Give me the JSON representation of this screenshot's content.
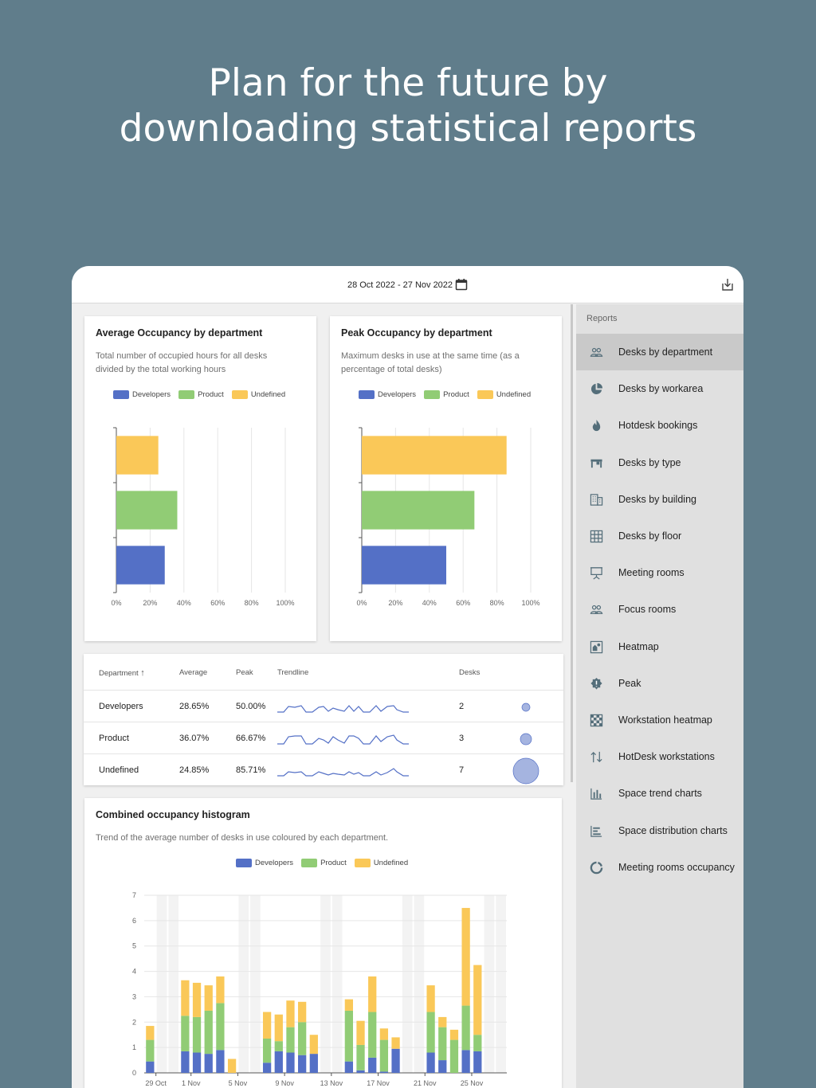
{
  "hero": {
    "line1": "Plan for the future by",
    "line2": "downloading statistical reports"
  },
  "topbar": {
    "date_range": "28 Oct 2022 - 27 Nov 2022"
  },
  "colors": {
    "developers": "#5470c6",
    "product": "#91cc75",
    "undefined": "#fac858"
  },
  "legend": [
    "Developers",
    "Product",
    "Undefined"
  ],
  "avg_card": {
    "title": "Average Occupancy by department",
    "desc_line1": "Total number of occupied hours for all desks",
    "desc_line2": "divided by the total working hours"
  },
  "peak_card": {
    "title": "Peak Occupancy by department",
    "desc_line1": "Maximum desks in use at the same time (as a",
    "desc_line2": "percentage of total desks)"
  },
  "table": {
    "headers": {
      "department": "Department",
      "average": "Average",
      "peak": "Peak",
      "trendline": "Trendline",
      "desks": "Desks"
    },
    "rows": [
      {
        "department": "Developers",
        "average": "28.65%",
        "peak": "50.00%",
        "desks": "2"
      },
      {
        "department": "Product",
        "average": "36.07%",
        "peak": "66.67%",
        "desks": "3"
      },
      {
        "department": "Undefined",
        "average": "24.85%",
        "peak": "85.71%",
        "desks": "7"
      }
    ]
  },
  "histogram_card": {
    "title": "Combined occupancy histogram",
    "desc": "Trend of the average number of desks in use coloured by each department."
  },
  "sidebar": {
    "heading": "Reports",
    "items": [
      {
        "label": "Desks by department",
        "icon": "people-icon"
      },
      {
        "label": "Desks by workarea",
        "icon": "pie-chart-icon"
      },
      {
        "label": "Hotdesk bookings",
        "icon": "flame-icon"
      },
      {
        "label": "Desks by type",
        "icon": "desk-icon"
      },
      {
        "label": "Desks by building",
        "icon": "building-icon"
      },
      {
        "label": "Desks by floor",
        "icon": "grid-icon"
      },
      {
        "label": "Meeting rooms",
        "icon": "presentation-icon"
      },
      {
        "label": "Focus rooms",
        "icon": "people-outline-icon"
      },
      {
        "label": "Heatmap",
        "icon": "heatmap-icon"
      },
      {
        "label": "Peak",
        "icon": "alert-badge-icon"
      },
      {
        "label": "Workstation heatmap",
        "icon": "checkerboard-icon"
      },
      {
        "label": "HotDesk workstations",
        "icon": "swap-vertical-icon"
      },
      {
        "label": "Space trend charts",
        "icon": "bar-chart-icon"
      },
      {
        "label": "Space distribution charts",
        "icon": "distribution-chart-icon"
      },
      {
        "label": "Meeting rooms occupancy",
        "icon": "donut-icon"
      }
    ]
  },
  "chart_data": [
    {
      "type": "bar",
      "orientation": "horizontal",
      "categories": [
        "Undefined",
        "Product",
        "Developers"
      ],
      "values": [
        24.85,
        36.07,
        28.65
      ],
      "xlim": [
        0,
        100
      ],
      "xticks": [
        "0%",
        "20%",
        "40%",
        "60%",
        "80%",
        "100%"
      ]
    },
    {
      "type": "bar",
      "orientation": "horizontal",
      "categories": [
        "Undefined",
        "Product",
        "Developers"
      ],
      "values": [
        85.71,
        66.67,
        50.0
      ],
      "xlim": [
        0,
        100
      ],
      "xticks": [
        "0%",
        "20%",
        "40%",
        "60%",
        "80%",
        "100%"
      ]
    },
    {
      "type": "bar",
      "stacked": true,
      "ylim": [
        0,
        7
      ],
      "yticks": [
        "0",
        "1",
        "2",
        "3",
        "4",
        "5",
        "6",
        "7"
      ],
      "xtick_labels": [
        "29 Oct",
        "1 Nov",
        "5 Nov",
        "9 Nov",
        "13 Nov",
        "17 Nov",
        "21 Nov",
        "25 Nov"
      ],
      "xtick_days": [
        1,
        4,
        8,
        12,
        16,
        20,
        24,
        28
      ],
      "weekend_days": [
        1,
        2,
        8,
        9,
        15,
        16,
        22,
        23,
        29,
        30
      ],
      "days": [
        {
          "d": 0,
          "dev": 0.45,
          "prod": 0.85,
          "undef": 0.55
        },
        {
          "d": 3,
          "dev": 0.85,
          "prod": 1.4,
          "undef": 1.4
        },
        {
          "d": 4,
          "dev": 0.8,
          "prod": 1.4,
          "undef": 1.35
        },
        {
          "d": 5,
          "dev": 0.75,
          "prod": 1.7,
          "undef": 1.0
        },
        {
          "d": 6,
          "dev": 0.9,
          "prod": 1.85,
          "undef": 1.05
        },
        {
          "d": 7,
          "dev": 0.0,
          "prod": 0.0,
          "undef": 0.55
        },
        {
          "d": 10,
          "dev": 0.4,
          "prod": 0.95,
          "undef": 1.05
        },
        {
          "d": 11,
          "dev": 0.85,
          "prod": 0.4,
          "undef": 1.05
        },
        {
          "d": 12,
          "dev": 0.8,
          "prod": 1.0,
          "undef": 1.05
        },
        {
          "d": 13,
          "dev": 0.7,
          "prod": 1.3,
          "undef": 0.8
        },
        {
          "d": 14,
          "dev": 0.75,
          "prod": 0.0,
          "undef": 0.75
        },
        {
          "d": 17,
          "dev": 0.45,
          "prod": 2.0,
          "undef": 0.45
        },
        {
          "d": 18,
          "dev": 0.1,
          "prod": 1.0,
          "undef": 0.95
        },
        {
          "d": 19,
          "dev": 0.6,
          "prod": 1.8,
          "undef": 1.4
        },
        {
          "d": 20,
          "dev": 0.05,
          "prod": 1.25,
          "undef": 0.45
        },
        {
          "d": 21,
          "dev": 0.95,
          "prod": 0.0,
          "undef": 0.45
        },
        {
          "d": 24,
          "dev": 0.8,
          "prod": 1.6,
          "undef": 1.05
        },
        {
          "d": 25,
          "dev": 0.5,
          "prod": 1.3,
          "undef": 0.4
        },
        {
          "d": 26,
          "dev": 0.0,
          "prod": 1.3,
          "undef": 0.4
        },
        {
          "d": 27,
          "dev": 0.9,
          "prod": 1.75,
          "undef": 3.85
        },
        {
          "d": 28,
          "dev": 0.85,
          "prod": 0.65,
          "undef": 2.75
        }
      ]
    }
  ]
}
